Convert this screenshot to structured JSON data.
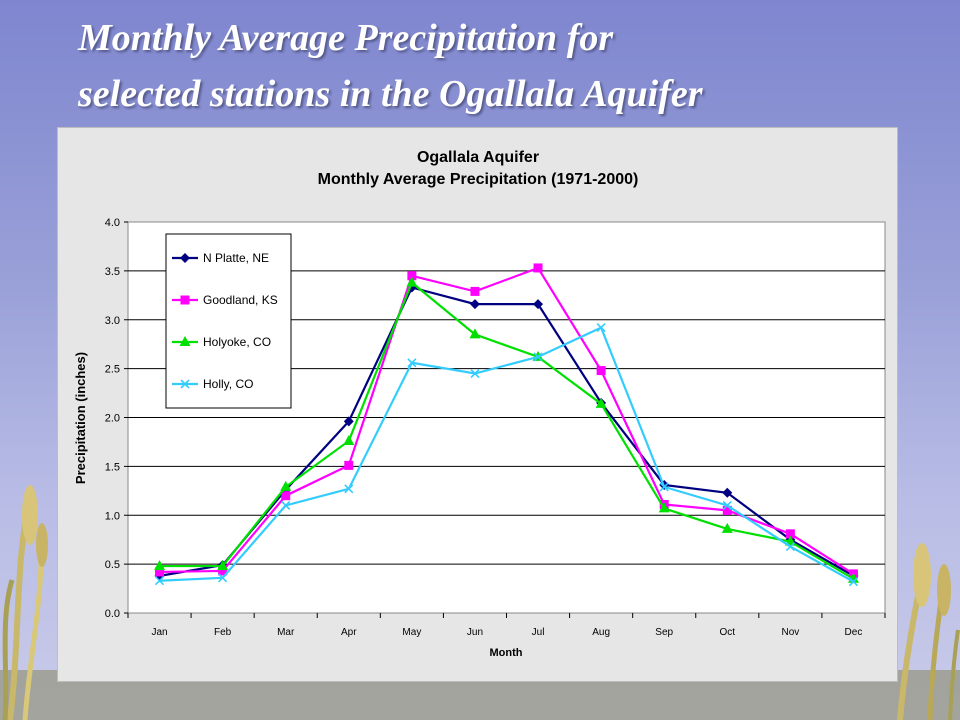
{
  "slide": {
    "title_line1": "Monthly Average Precipitation for",
    "title_line2": "selected stations in the Ogallala Aquifer"
  },
  "colors": {
    "background_top": "#7f86cf",
    "chart_background": "#e6e6e6",
    "plot_background": "#ffffff"
  },
  "chart_data": {
    "type": "line",
    "title": "Ogallala Aquifer",
    "subtitle": "Monthly Average Precipitation (1971-2000)",
    "xlabel": "Month",
    "ylabel": "Precipitation (inches)",
    "ylim": [
      0,
      4.0
    ],
    "ytick_step": 0.5,
    "yticks": [
      "0.0",
      "0.5",
      "1.0",
      "1.5",
      "2.0",
      "2.5",
      "3.0",
      "3.5",
      "4.0"
    ],
    "grid": "horizontal",
    "legend_position": "top-left",
    "categories": [
      "Jan",
      "Feb",
      "Mar",
      "Apr",
      "May",
      "Jun",
      "Jul",
      "Aug",
      "Sep",
      "Oct",
      "Nov",
      "Dec"
    ],
    "series": [
      {
        "name": "N Platte, NE",
        "color": "#000080",
        "marker": "diamond",
        "values": [
          0.38,
          0.49,
          1.26,
          1.96,
          3.33,
          3.16,
          3.16,
          2.15,
          1.31,
          1.23,
          0.75,
          0.38
        ]
      },
      {
        "name": "Goodland, KS",
        "color": "#ff00ff",
        "marker": "square",
        "values": [
          0.42,
          0.43,
          1.2,
          1.51,
          3.45,
          3.29,
          3.53,
          2.48,
          1.11,
          1.05,
          0.81,
          0.4
        ]
      },
      {
        "name": "Holyoke, CO",
        "color": "#00e000",
        "marker": "triangle",
        "values": [
          0.48,
          0.48,
          1.29,
          1.76,
          3.38,
          2.85,
          2.62,
          2.14,
          1.07,
          0.86,
          0.73,
          0.35
        ]
      },
      {
        "name": "Holly, CO",
        "color": "#33ccff",
        "marker": "x",
        "values": [
          0.33,
          0.36,
          1.1,
          1.27,
          2.56,
          2.45,
          2.62,
          2.92,
          1.29,
          1.1,
          0.68,
          0.32
        ]
      }
    ]
  }
}
